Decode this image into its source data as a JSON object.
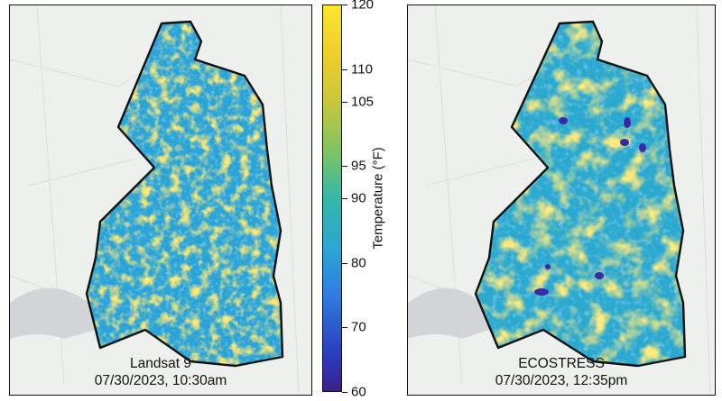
{
  "panels": [
    {
      "caption_line1": "Landsat 9",
      "caption_line2": "07/30/2023, 10:30am"
    },
    {
      "caption_line1": "ECOSTRESS",
      "caption_line2": "07/30/2023, 12:35pm"
    }
  ],
  "colorbar": {
    "title": "Temperature (°F)",
    "min": 60,
    "max": 120,
    "ticks": [
      "60",
      "70",
      "80",
      "90",
      "95",
      "105",
      "110",
      "120"
    ],
    "tick_values": [
      60,
      70,
      80,
      90,
      95,
      105,
      110,
      120
    ],
    "colors": {
      "low": "#3b1f8c",
      "mid": "#2aa7d3",
      "high": "#fbe62d"
    }
  }
}
